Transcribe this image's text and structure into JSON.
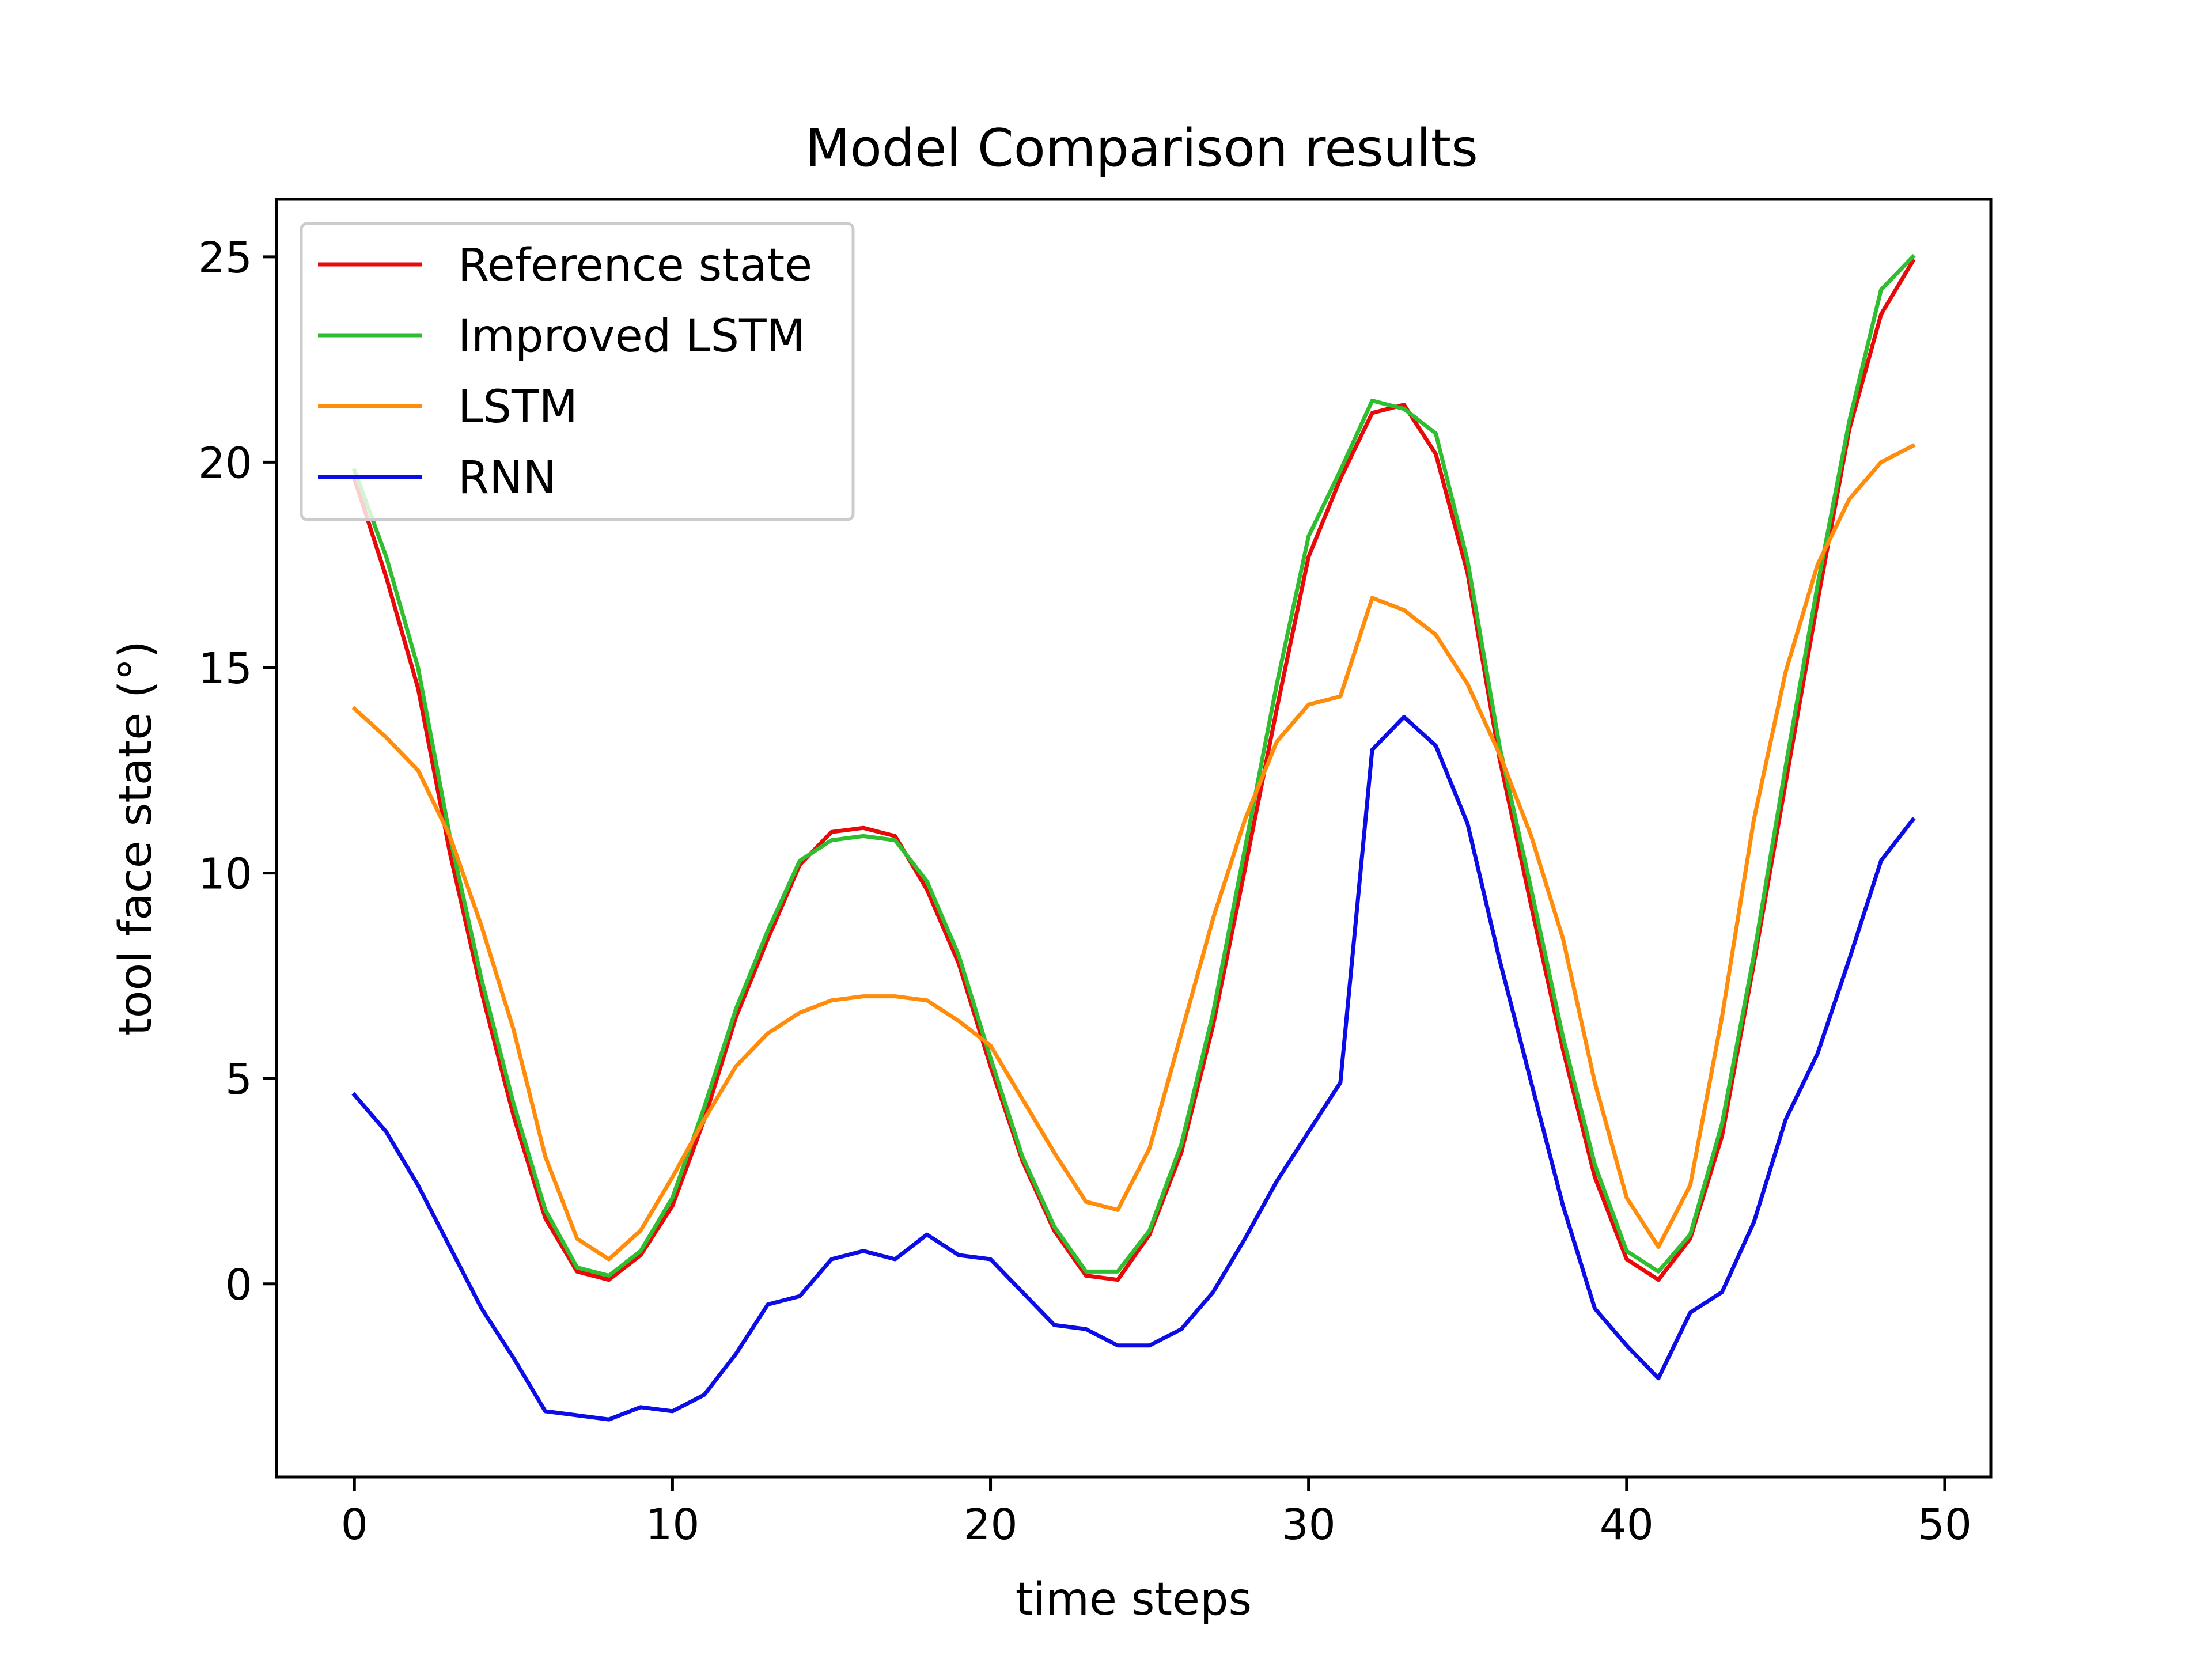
{
  "chart_data": {
    "type": "line",
    "title": "Model Comparison results",
    "xlabel": "time steps",
    "ylabel": "tool face state (°)",
    "xlim": [
      -2.45,
      51.45
    ],
    "ylim": [
      -4.7,
      26.4
    ],
    "xticks": [
      0,
      10,
      20,
      30,
      40,
      50
    ],
    "yticks": [
      0,
      5,
      10,
      15,
      20,
      25
    ],
    "xtick_labels": [
      "0",
      "10",
      "20",
      "30",
      "40",
      "50"
    ],
    "ytick_labels": [
      "0",
      "5",
      "10",
      "15",
      "20",
      "25"
    ],
    "grid": false,
    "legend_position": "top-left",
    "x": [
      0,
      1,
      2,
      3,
      4,
      5,
      6,
      7,
      8,
      9,
      10,
      11,
      12,
      13,
      14,
      15,
      16,
      17,
      18,
      19,
      20,
      21,
      22,
      23,
      24,
      25,
      26,
      27,
      28,
      29,
      30,
      31,
      32,
      33,
      34,
      35,
      36,
      37,
      38,
      39,
      40,
      41,
      42,
      43,
      44,
      45,
      46,
      47,
      48,
      49
    ],
    "series": [
      {
        "name": "Reference state",
        "color": "#e8090b",
        "values": [
          19.6,
          17.2,
          14.5,
          10.5,
          7.1,
          4.1,
          1.6,
          0.3,
          0.1,
          0.7,
          1.9,
          4.0,
          6.5,
          8.4,
          10.2,
          11.0,
          11.1,
          10.9,
          9.6,
          7.8,
          5.3,
          3.0,
          1.3,
          0.2,
          0.1,
          1.2,
          3.2,
          6.3,
          10.1,
          14.0,
          17.7,
          19.6,
          21.2,
          21.4,
          20.2,
          17.3,
          12.8,
          9.2,
          5.7,
          2.6,
          0.6,
          0.1,
          1.1,
          3.6,
          7.8,
          12.2,
          16.6,
          20.8,
          23.6,
          24.9
        ]
      },
      {
        "name": "Improved LSTM",
        "color": "#2fbe2f",
        "values": [
          19.8,
          17.7,
          15.0,
          10.9,
          7.4,
          4.4,
          1.8,
          0.4,
          0.2,
          0.8,
          2.1,
          4.3,
          6.7,
          8.6,
          10.3,
          10.8,
          10.9,
          10.8,
          9.8,
          8.0,
          5.5,
          3.1,
          1.4,
          0.3,
          0.3,
          1.3,
          3.4,
          6.6,
          10.6,
          14.6,
          18.2,
          19.8,
          21.5,
          21.3,
          20.7,
          17.6,
          13.1,
          9.6,
          6.0,
          2.9,
          0.8,
          0.3,
          1.2,
          3.9,
          8.0,
          12.6,
          17.0,
          21.0,
          24.2,
          25.0
        ]
      },
      {
        "name": "LSTM",
        "color": "#ff8c0b",
        "values": [
          14.0,
          13.3,
          12.5,
          10.9,
          8.7,
          6.2,
          3.1,
          1.1,
          0.6,
          1.3,
          2.6,
          4.0,
          5.3,
          6.1,
          6.6,
          6.9,
          7.0,
          7.0,
          6.9,
          6.4,
          5.8,
          4.5,
          3.2,
          2.0,
          1.8,
          3.3,
          6.1,
          8.9,
          11.3,
          13.2,
          14.1,
          14.3,
          16.7,
          16.4,
          15.8,
          14.6,
          12.9,
          10.9,
          8.4,
          4.9,
          2.1,
          0.9,
          2.4,
          6.5,
          11.3,
          14.9,
          17.5,
          19.1,
          20.0,
          20.4
        ]
      },
      {
        "name": "RNN",
        "color": "#0c0ce6",
        "values": [
          4.6,
          3.7,
          2.4,
          0.9,
          -0.6,
          -1.8,
          -3.1,
          -3.2,
          -3.3,
          -3.0,
          -3.1,
          -2.7,
          -1.7,
          -0.5,
          -0.3,
          0.6,
          0.8,
          0.6,
          1.2,
          0.7,
          0.6,
          -0.2,
          -1.0,
          -1.1,
          -1.5,
          -1.5,
          -1.1,
          -0.2,
          1.1,
          2.5,
          3.7,
          4.9,
          13.0,
          13.8,
          13.1,
          11.2,
          7.9,
          4.9,
          1.9,
          -0.6,
          -1.5,
          -2.3,
          -0.7,
          -0.2,
          1.5,
          4.0,
          5.6,
          7.9,
          10.3,
          11.3
        ]
      }
    ]
  }
}
